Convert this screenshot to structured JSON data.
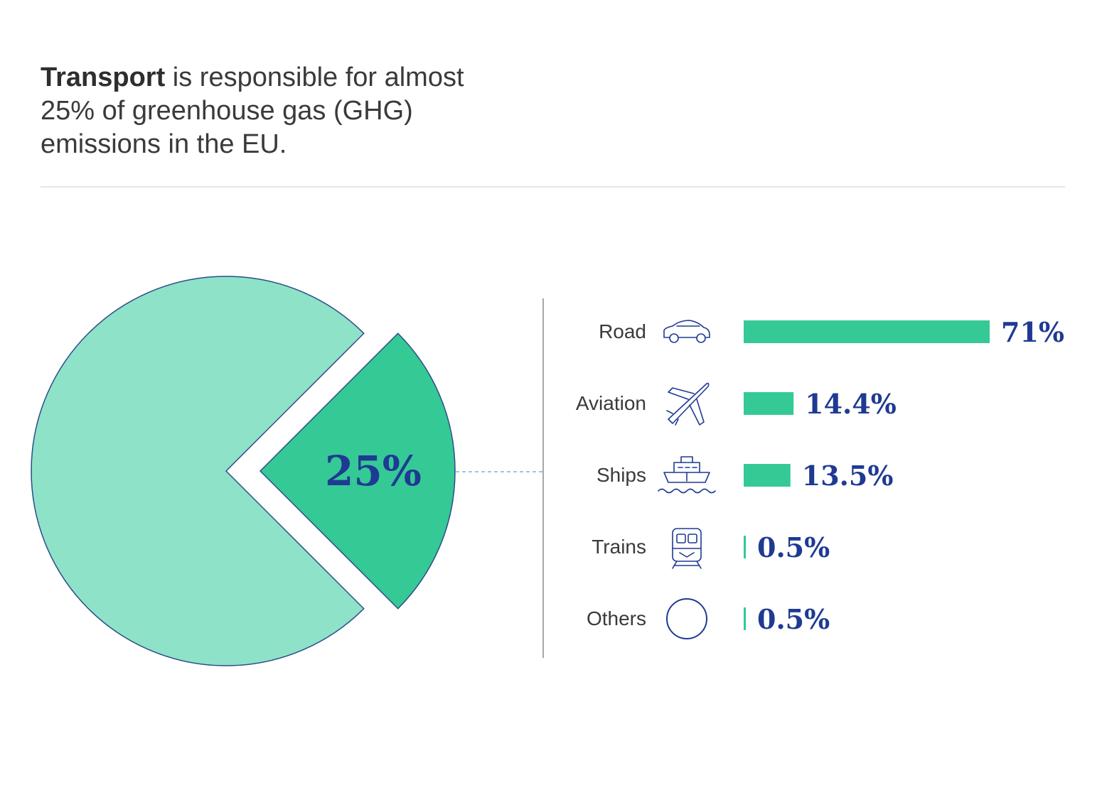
{
  "headline": {
    "bold": "Transport",
    "rest": " is responsible for almost 25% of greenhouse gas (GHG) emissions in the EU."
  },
  "colors": {
    "pie_main": "#8ee2c8",
    "pie_slice": "#35c995",
    "outline": "#2b4d8a",
    "bar": "#35c995",
    "value_text": "#1f3a93",
    "icon_stroke": "#1f3a93"
  },
  "chart_data": [
    {
      "type": "pie",
      "slices": [
        {
          "name": "",
          "value": 75,
          "label": ""
        },
        {
          "name": "",
          "value": 25,
          "label": "25%",
          "exploded": true
        }
      ]
    },
    {
      "type": "bar",
      "orientation": "horizontal",
      "categories": [
        "Road",
        "Aviation",
        "Ships",
        "Trains",
        "Others"
      ],
      "values": [
        71,
        14.4,
        13.5,
        0.5,
        0.5
      ],
      "value_labels": [
        "71%",
        "14.4%",
        "13.5%",
        "0.5%",
        "0.5%"
      ],
      "icons": [
        "car-icon",
        "plane-icon",
        "ship-icon",
        "train-icon",
        "circle-icon"
      ],
      "xlim": [
        0,
        71
      ]
    }
  ]
}
